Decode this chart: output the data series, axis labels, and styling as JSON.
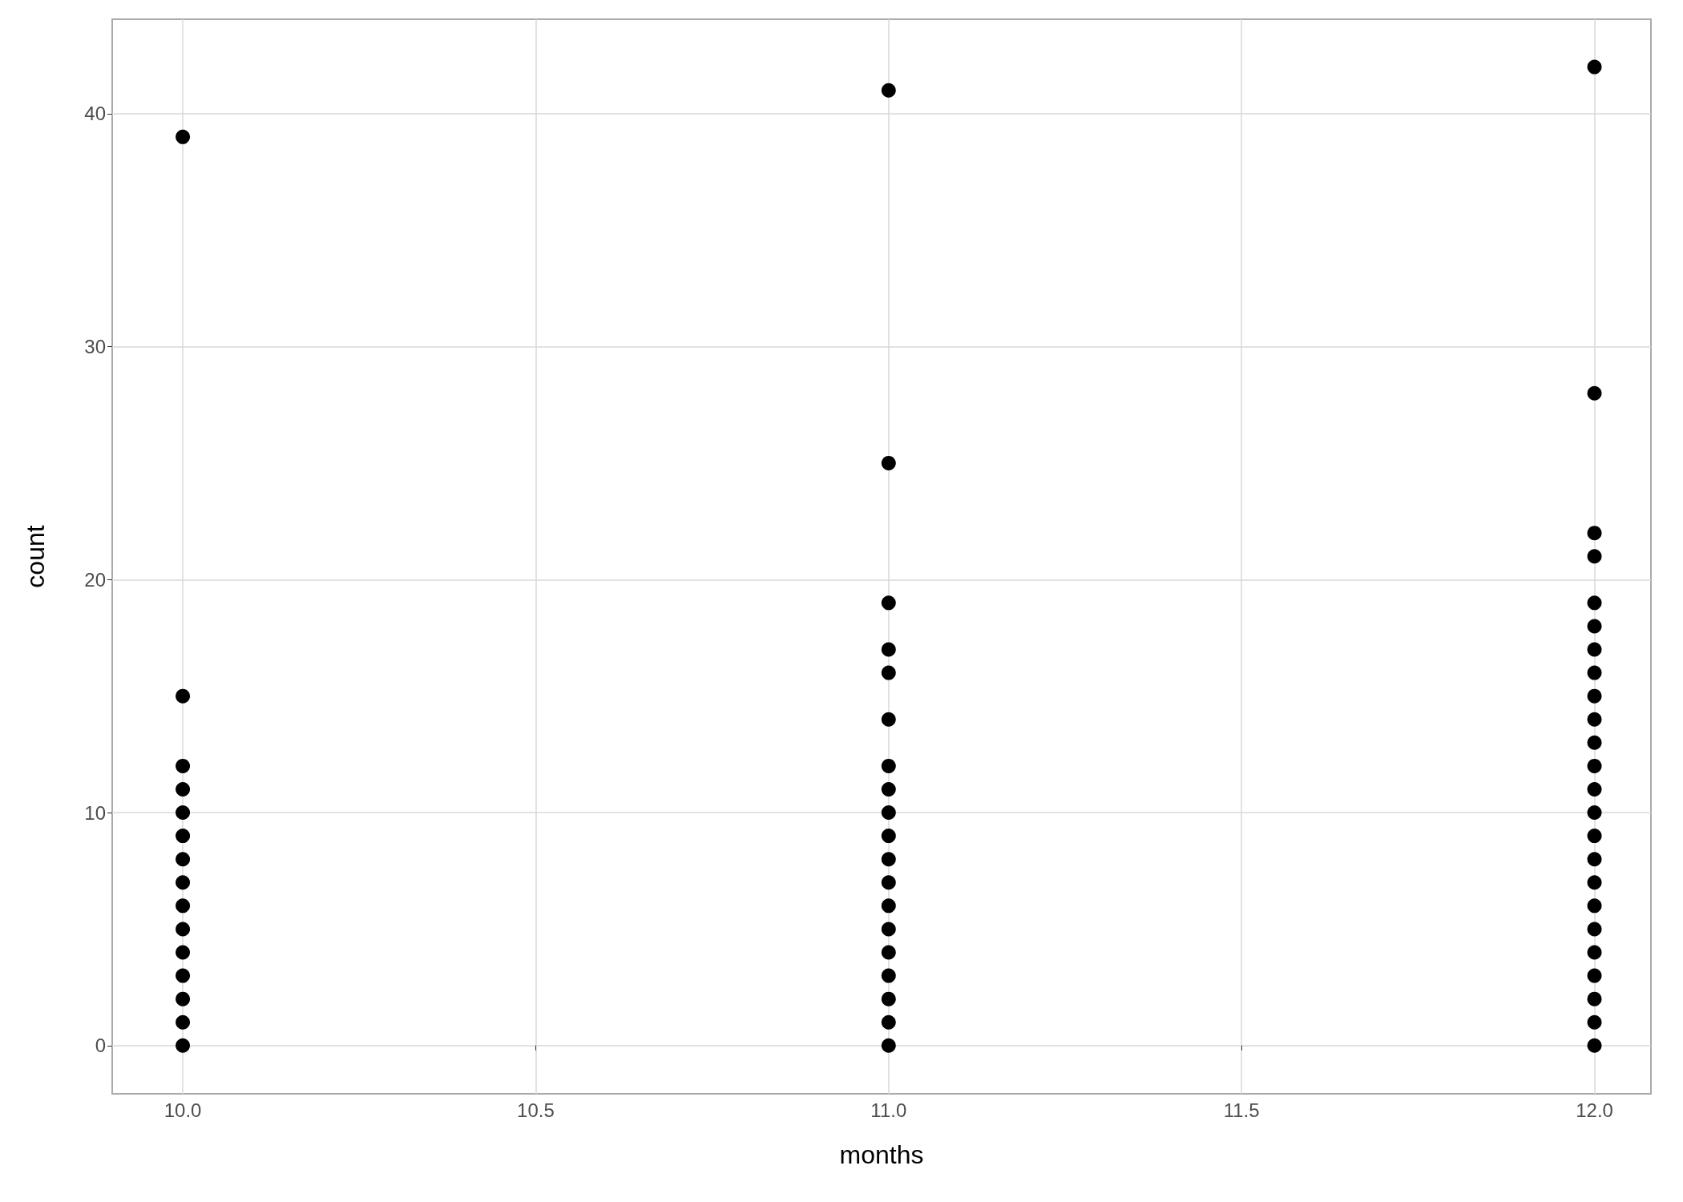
{
  "chart_data": {
    "type": "scatter",
    "xlabel": "months",
    "ylabel": "count",
    "x": [
      10,
      10,
      10,
      10,
      10,
      10,
      10,
      10,
      10,
      10,
      10,
      10,
      10,
      10,
      10,
      11,
      11,
      11,
      11,
      11,
      11,
      11,
      11,
      11,
      11,
      11,
      11,
      11,
      11,
      11,
      11,
      11,
      11,
      11,
      12,
      12,
      12,
      12,
      12,
      12,
      12,
      12,
      12,
      12,
      12,
      12,
      12,
      12,
      12,
      12,
      12,
      12,
      12,
      12,
      12,
      12,
      12,
      12
    ],
    "values": [
      0,
      1,
      2,
      3,
      4,
      5,
      6,
      7,
      8,
      9,
      10,
      11,
      12,
      15,
      39,
      0,
      1,
      2,
      3,
      4,
      5,
      6,
      7,
      8,
      9,
      10,
      11,
      12,
      14,
      16,
      17,
      19,
      25,
      41,
      0,
      1,
      2,
      3,
      4,
      5,
      6,
      7,
      8,
      9,
      10,
      11,
      12,
      13,
      14,
      15,
      16,
      17,
      18,
      19,
      21,
      22,
      28,
      42
    ],
    "color": "#000000",
    "marker": "circle",
    "xlim": [
      9.9,
      12.08
    ],
    "xticks": [
      {
        "value": 10,
        "label": "10.0"
      },
      {
        "value": 10.5,
        "label": "10.5"
      },
      {
        "value": 11,
        "label": "11.0"
      },
      {
        "value": 11.5,
        "label": "11.5"
      },
      {
        "value": 12,
        "label": "12.0"
      }
    ],
    "ylim": [
      -2.07,
      44.05
    ],
    "yticks": [
      0,
      10,
      20,
      30,
      40
    ],
    "grid": true
  }
}
